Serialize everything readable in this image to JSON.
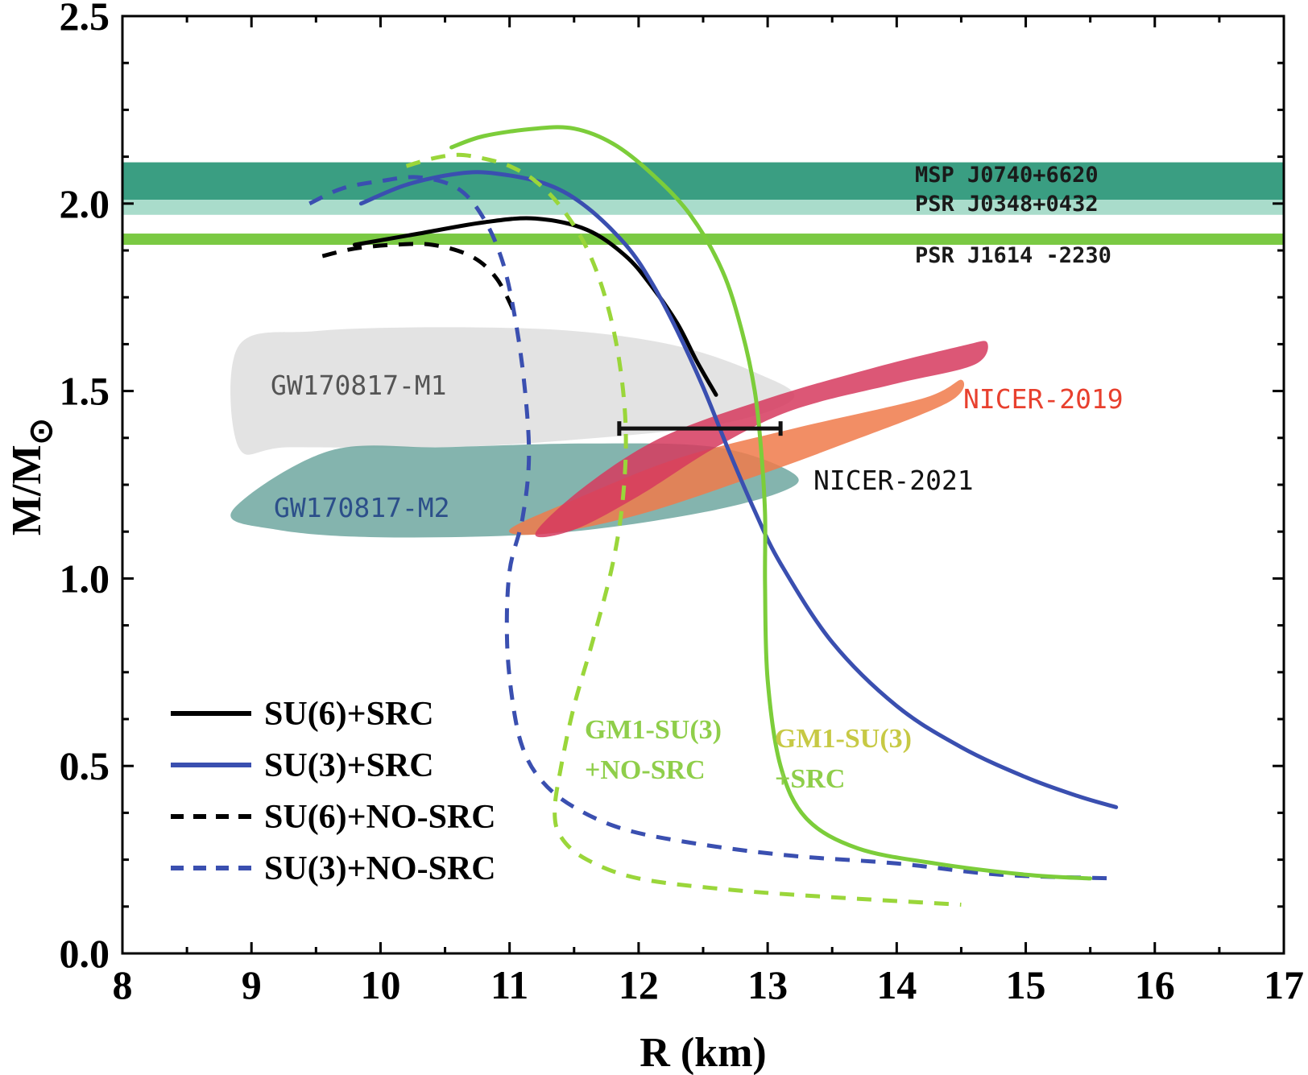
{
  "chart_data": {
    "type": "line",
    "xlabel": "R (km)",
    "ylabel": "M/M",
    "ylabel_sub": "⊙",
    "xlim": [
      8,
      17
    ],
    "ylim": [
      0.0,
      2.5
    ],
    "x_ticks": [
      "8",
      "9",
      "10",
      "11",
      "12",
      "13",
      "14",
      "15",
      "16",
      "17"
    ],
    "y_ticks": [
      "0.0",
      "0.5",
      "1.0",
      "1.5",
      "2.0",
      "2.5"
    ],
    "bands": [
      {
        "name": "MSP  J0740+6620",
        "ymin": 2.01,
        "ymax": 2.11,
        "color": "#3a9e82"
      },
      {
        "name": "PSR  J0348+0432",
        "ymin": 1.97,
        "ymax": 2.01,
        "color": "#a9dccb"
      },
      {
        "name": "PSR  J1614 -2230",
        "ymin": 1.89,
        "ymax": 1.92,
        "color": "#7ac943"
      }
    ],
    "regions": [
      {
        "name": "GW170817-M1",
        "color": "#dcdcdc",
        "label_color": "#555555",
        "outline": [
          [
            8.9,
            1.35
          ],
          [
            8.9,
            1.62
          ],
          [
            9.5,
            1.66
          ],
          [
            10.5,
            1.67
          ],
          [
            11.5,
            1.66
          ],
          [
            12.3,
            1.62
          ],
          [
            12.9,
            1.55
          ],
          [
            13.2,
            1.48
          ],
          [
            12.6,
            1.41
          ],
          [
            11.5,
            1.37
          ],
          [
            10.5,
            1.35
          ],
          [
            9.3,
            1.35
          ]
        ]
      },
      {
        "name": "GW170817-M2",
        "color": "#6fa7a0",
        "label_color": "#2c4f8a",
        "outline": [
          [
            8.85,
            1.18
          ],
          [
            9.6,
            1.34
          ],
          [
            10.5,
            1.35
          ],
          [
            11.6,
            1.36
          ],
          [
            12.6,
            1.35
          ],
          [
            13.2,
            1.28
          ],
          [
            13.1,
            1.23
          ],
          [
            12.4,
            1.17
          ],
          [
            11.3,
            1.12
          ],
          [
            10.0,
            1.11
          ],
          [
            9.2,
            1.13
          ]
        ]
      },
      {
        "name": "NICER-2021",
        "color": "#f07a4a",
        "label_color": "#111111",
        "outline": [
          [
            11.0,
            1.13
          ],
          [
            11.5,
            1.21
          ],
          [
            12.3,
            1.32
          ],
          [
            13.2,
            1.4
          ],
          [
            14.2,
            1.48
          ],
          [
            14.5,
            1.53
          ],
          [
            14.4,
            1.47
          ],
          [
            13.6,
            1.36
          ],
          [
            12.8,
            1.26
          ],
          [
            12.0,
            1.17
          ],
          [
            11.3,
            1.12
          ]
        ]
      },
      {
        "name": "NICER-2019",
        "color": "#d63a5e",
        "label_color": "#e8402e",
        "outline": [
          [
            11.2,
            1.12
          ],
          [
            11.6,
            1.25
          ],
          [
            12.2,
            1.38
          ],
          [
            13.0,
            1.48
          ],
          [
            13.8,
            1.56
          ],
          [
            14.5,
            1.62
          ],
          [
            14.7,
            1.63
          ],
          [
            14.6,
            1.57
          ],
          [
            14.0,
            1.52
          ],
          [
            13.2,
            1.45
          ],
          [
            12.6,
            1.35
          ],
          [
            12.0,
            1.22
          ],
          [
            11.5,
            1.13
          ]
        ]
      }
    ],
    "error_bar": {
      "x_low": 11.85,
      "x_high": 13.1,
      "y": 1.4
    },
    "series": [
      {
        "name": "SU(6)+SRC",
        "style": "solid",
        "color": "#000000",
        "x": [
          9.8,
          10.3,
          10.8,
          11.2,
          11.6,
          11.9,
          12.1,
          12.3,
          12.45,
          12.6
        ],
        "y": [
          1.89,
          1.92,
          1.95,
          1.96,
          1.93,
          1.86,
          1.78,
          1.68,
          1.58,
          1.49
        ]
      },
      {
        "name": "SU(3)+SRC",
        "style": "solid",
        "color": "#3a4fb0",
        "x": [
          9.85,
          10.2,
          10.6,
          10.9,
          11.3,
          11.6,
          11.9,
          12.1,
          12.3,
          12.5,
          12.7,
          12.9,
          13.1,
          13.5,
          14.0,
          14.5,
          15.0,
          15.4,
          15.7
        ],
        "y": [
          2.0,
          2.05,
          2.08,
          2.08,
          2.05,
          1.99,
          1.89,
          1.79,
          1.66,
          1.51,
          1.34,
          1.18,
          1.04,
          0.83,
          0.66,
          0.55,
          0.47,
          0.42,
          0.39
        ]
      },
      {
        "name": "SU(6)+NO-SRC",
        "style": "dashed",
        "color": "#000000",
        "x": [
          9.55,
          9.8,
          10.1,
          10.4,
          10.7,
          10.9,
          11.05
        ],
        "y": [
          1.86,
          1.88,
          1.89,
          1.89,
          1.86,
          1.8,
          1.7
        ]
      },
      {
        "name": "SU(3)+NO-SRC",
        "style": "dashed",
        "color": "#3a4fb0",
        "x": [
          9.45,
          9.7,
          10.0,
          10.3,
          10.6,
          10.8,
          10.95,
          11.05,
          11.12,
          11.15,
          11.1,
          11.0,
          10.98,
          11.02,
          11.1,
          11.25,
          11.5,
          11.9,
          12.5,
          13.2,
          14.0,
          14.8,
          15.7
        ],
        "y": [
          2.0,
          2.04,
          2.06,
          2.07,
          2.04,
          1.96,
          1.84,
          1.68,
          1.5,
          1.32,
          1.16,
          1.02,
          0.84,
          0.68,
          0.55,
          0.46,
          0.39,
          0.33,
          0.29,
          0.26,
          0.24,
          0.21,
          0.2
        ]
      },
      {
        "name": "GM1-SU(3) +SRC",
        "style": "solid",
        "color": "#7ccd3a",
        "x": [
          10.55,
          10.8,
          11.2,
          11.5,
          11.8,
          12.1,
          12.4,
          12.65,
          12.8,
          12.9,
          12.95,
          12.98,
          12.98,
          13.0,
          13.1,
          13.3,
          13.7,
          14.3,
          15.0,
          15.5
        ],
        "y": [
          2.15,
          2.18,
          2.2,
          2.2,
          2.16,
          2.08,
          1.97,
          1.82,
          1.66,
          1.5,
          1.34,
          1.17,
          0.98,
          0.73,
          0.5,
          0.36,
          0.28,
          0.24,
          0.21,
          0.2
        ]
      },
      {
        "name": "GM1-SU(3) +NO-SRC",
        "style": "dashed",
        "color": "#9ad63a",
        "x": [
          10.2,
          10.4,
          10.6,
          10.8,
          11.0,
          11.2,
          11.4,
          11.6,
          11.75,
          11.85,
          11.9,
          11.88,
          11.8,
          11.65,
          11.5,
          11.4,
          11.35,
          11.4,
          11.6,
          12.0,
          12.7,
          13.5,
          14.5
        ],
        "y": [
          2.1,
          2.12,
          2.13,
          2.12,
          2.1,
          2.06,
          1.99,
          1.88,
          1.74,
          1.58,
          1.4,
          1.22,
          1.04,
          0.84,
          0.66,
          0.5,
          0.38,
          0.31,
          0.25,
          0.2,
          0.17,
          0.15,
          0.13
        ]
      }
    ],
    "legend": [
      {
        "label": "SU(6)+SRC",
        "style": "solid",
        "color": "#000000"
      },
      {
        "label": "SU(3)+SRC",
        "style": "solid",
        "color": "#3a4fb0"
      },
      {
        "label": "SU(6)+NO-SRC",
        "style": "dashed",
        "color": "#000000"
      },
      {
        "label": "SU(3)+NO-SRC",
        "style": "dashed",
        "color": "#3a4fb0"
      }
    ],
    "annotations": [
      {
        "text": "GM1-SU(3)",
        "color": "#8fce4a"
      },
      {
        "text": "+NO-SRC",
        "color": "#8fce4a"
      },
      {
        "text": "GM1-SU(3)",
        "color": "#c7c944"
      },
      {
        "text": "+SRC",
        "color": "#8fce4a"
      }
    ],
    "legend_position": "bottom-left",
    "grid": false
  }
}
